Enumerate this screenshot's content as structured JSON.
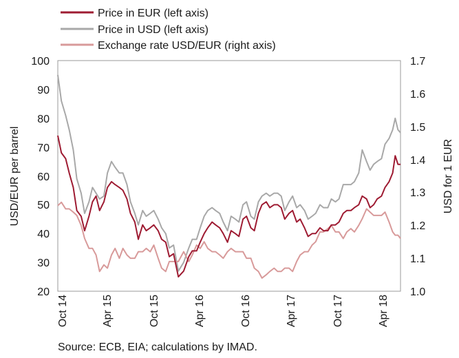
{
  "chart_data": {
    "type": "line",
    "title": "",
    "xlabel": "",
    "ylabel": "USD/EUR per barrel",
    "y2label": "USD for 1 EUR",
    "ylim": [
      20,
      100
    ],
    "y2lim": [
      1.0,
      1.7
    ],
    "yticks": [
      "100",
      "90",
      "80",
      "70",
      "60",
      "50",
      "40",
      "30",
      "20"
    ],
    "y2ticks": [
      "1.7",
      "1.6",
      "1.5",
      "1.4",
      "1.3",
      "1.2",
      "1.1",
      "1.0"
    ],
    "xticks": [
      "Oct 14",
      "Apr 15",
      "Oct 15",
      "Apr 16",
      "Oct 16",
      "Apr 17",
      "Oct 17",
      "Apr 18"
    ],
    "xrange": [
      "2014-10-01",
      "2018-06-15"
    ],
    "legend_position": "top-left",
    "source": "Source: ECB, EIA; calculations by IMAD.",
    "series": [
      {
        "name": "Price in EUR (left axis)",
        "axis": "left",
        "color": "#9e1b32",
        "points": [
          [
            "2014-10-01",
            74
          ],
          [
            "2014-10-15",
            68
          ],
          [
            "2014-11-01",
            66
          ],
          [
            "2014-11-15",
            61
          ],
          [
            "2014-12-01",
            56
          ],
          [
            "2014-12-15",
            48
          ],
          [
            "2015-01-01",
            46
          ],
          [
            "2015-01-15",
            41
          ],
          [
            "2015-02-01",
            46
          ],
          [
            "2015-02-15",
            51
          ],
          [
            "2015-03-01",
            53
          ],
          [
            "2015-03-15",
            48
          ],
          [
            "2015-04-01",
            51
          ],
          [
            "2015-04-15",
            56
          ],
          [
            "2015-05-01",
            58
          ],
          [
            "2015-05-15",
            57
          ],
          [
            "2015-06-01",
            56
          ],
          [
            "2015-06-15",
            55
          ],
          [
            "2015-07-01",
            52
          ],
          [
            "2015-07-15",
            47
          ],
          [
            "2015-08-01",
            44
          ],
          [
            "2015-08-15",
            38
          ],
          [
            "2015-09-01",
            43
          ],
          [
            "2015-09-15",
            41
          ],
          [
            "2015-10-01",
            42
          ],
          [
            "2015-10-15",
            43
          ],
          [
            "2015-11-01",
            41
          ],
          [
            "2015-11-15",
            38
          ],
          [
            "2015-12-01",
            37
          ],
          [
            "2015-12-15",
            32
          ],
          [
            "2016-01-01",
            33
          ],
          [
            "2016-01-20",
            25
          ],
          [
            "2016-02-10",
            27
          ],
          [
            "2016-03-01",
            32
          ],
          [
            "2016-03-15",
            34
          ],
          [
            "2016-04-01",
            34
          ],
          [
            "2016-04-15",
            37
          ],
          [
            "2016-05-01",
            40
          ],
          [
            "2016-05-15",
            42
          ],
          [
            "2016-06-01",
            44
          ],
          [
            "2016-06-15",
            43
          ],
          [
            "2016-07-01",
            42
          ],
          [
            "2016-07-15",
            40
          ],
          [
            "2016-08-01",
            37
          ],
          [
            "2016-08-15",
            41
          ],
          [
            "2016-09-01",
            40
          ],
          [
            "2016-09-15",
            39
          ],
          [
            "2016-10-01",
            45
          ],
          [
            "2016-10-15",
            46
          ],
          [
            "2016-11-01",
            42
          ],
          [
            "2016-11-15",
            41
          ],
          [
            "2016-12-01",
            47
          ],
          [
            "2016-12-15",
            50
          ],
          [
            "2017-01-01",
            51
          ],
          [
            "2017-01-15",
            49
          ],
          [
            "2017-02-01",
            50
          ],
          [
            "2017-02-15",
            50
          ],
          [
            "2017-03-01",
            49
          ],
          [
            "2017-03-15",
            45
          ],
          [
            "2017-04-01",
            47
          ],
          [
            "2017-04-15",
            48
          ],
          [
            "2017-05-01",
            44
          ],
          [
            "2017-05-15",
            45
          ],
          [
            "2017-06-01",
            42
          ],
          [
            "2017-06-15",
            39
          ],
          [
            "2017-07-01",
            40
          ],
          [
            "2017-07-15",
            40
          ],
          [
            "2017-08-01",
            42
          ],
          [
            "2017-08-15",
            41
          ],
          [
            "2017-09-01",
            41
          ],
          [
            "2017-09-15",
            43
          ],
          [
            "2017-10-01",
            43
          ],
          [
            "2017-10-15",
            44
          ],
          [
            "2017-11-01",
            47
          ],
          [
            "2017-11-15",
            48
          ],
          [
            "2017-12-01",
            48
          ],
          [
            "2017-12-15",
            49
          ],
          [
            "2018-01-01",
            50
          ],
          [
            "2018-01-15",
            53
          ],
          [
            "2018-02-01",
            52
          ],
          [
            "2018-02-15",
            49
          ],
          [
            "2018-03-01",
            50
          ],
          [
            "2018-03-15",
            52
          ],
          [
            "2018-04-01",
            53
          ],
          [
            "2018-04-15",
            56
          ],
          [
            "2018-05-01",
            58
          ],
          [
            "2018-05-15",
            61
          ],
          [
            "2018-05-25",
            67
          ],
          [
            "2018-06-05",
            64
          ],
          [
            "2018-06-15",
            64
          ]
        ]
      },
      {
        "name": "Price in USD (left axis)",
        "axis": "left",
        "color": "#a8a8a8",
        "points": [
          [
            "2014-10-01",
            95
          ],
          [
            "2014-10-15",
            86
          ],
          [
            "2014-11-01",
            81
          ],
          [
            "2014-11-15",
            76
          ],
          [
            "2014-12-01",
            69
          ],
          [
            "2014-12-15",
            59
          ],
          [
            "2015-01-01",
            54
          ],
          [
            "2015-01-15",
            47
          ],
          [
            "2015-02-01",
            51
          ],
          [
            "2015-02-15",
            56
          ],
          [
            "2015-03-01",
            54
          ],
          [
            "2015-03-15",
            52
          ],
          [
            "2015-04-01",
            53
          ],
          [
            "2015-04-15",
            61
          ],
          [
            "2015-05-01",
            65
          ],
          [
            "2015-05-15",
            63
          ],
          [
            "2015-06-01",
            61
          ],
          [
            "2015-06-15",
            61
          ],
          [
            "2015-07-01",
            57
          ],
          [
            "2015-07-15",
            51
          ],
          [
            "2015-08-01",
            47
          ],
          [
            "2015-08-15",
            43
          ],
          [
            "2015-09-01",
            48
          ],
          [
            "2015-09-15",
            46
          ],
          [
            "2015-10-01",
            47
          ],
          [
            "2015-10-15",
            48
          ],
          [
            "2015-11-01",
            45
          ],
          [
            "2015-11-15",
            42
          ],
          [
            "2015-12-01",
            40
          ],
          [
            "2015-12-15",
            35
          ],
          [
            "2016-01-01",
            36
          ],
          [
            "2016-01-20",
            27
          ],
          [
            "2016-02-10",
            30
          ],
          [
            "2016-03-01",
            35
          ],
          [
            "2016-03-15",
            38
          ],
          [
            "2016-04-01",
            38
          ],
          [
            "2016-04-15",
            42
          ],
          [
            "2016-05-01",
            46
          ],
          [
            "2016-05-15",
            48
          ],
          [
            "2016-06-01",
            49
          ],
          [
            "2016-06-15",
            48
          ],
          [
            "2016-07-01",
            47
          ],
          [
            "2016-07-15",
            44
          ],
          [
            "2016-08-01",
            41
          ],
          [
            "2016-08-15",
            46
          ],
          [
            "2016-09-01",
            45
          ],
          [
            "2016-09-15",
            44
          ],
          [
            "2016-10-01",
            50
          ],
          [
            "2016-10-15",
            51
          ],
          [
            "2016-11-01",
            46
          ],
          [
            "2016-11-15",
            45
          ],
          [
            "2016-12-01",
            51
          ],
          [
            "2016-12-15",
            53
          ],
          [
            "2017-01-01",
            54
          ],
          [
            "2017-01-15",
            53
          ],
          [
            "2017-02-01",
            54
          ],
          [
            "2017-02-15",
            54
          ],
          [
            "2017-03-01",
            53
          ],
          [
            "2017-03-15",
            48
          ],
          [
            "2017-04-01",
            51
          ],
          [
            "2017-04-15",
            53
          ],
          [
            "2017-05-01",
            49
          ],
          [
            "2017-05-15",
            50
          ],
          [
            "2017-06-01",
            48
          ],
          [
            "2017-06-15",
            45
          ],
          [
            "2017-07-01",
            46
          ],
          [
            "2017-07-15",
            47
          ],
          [
            "2017-08-01",
            50
          ],
          [
            "2017-08-15",
            49
          ],
          [
            "2017-09-01",
            49
          ],
          [
            "2017-09-15",
            52
          ],
          [
            "2017-10-01",
            51
          ],
          [
            "2017-10-15",
            52
          ],
          [
            "2017-11-01",
            57
          ],
          [
            "2017-11-15",
            57
          ],
          [
            "2017-12-01",
            57
          ],
          [
            "2017-12-15",
            58
          ],
          [
            "2018-01-01",
            61
          ],
          [
            "2018-01-15",
            69
          ],
          [
            "2018-02-01",
            65
          ],
          [
            "2018-02-15",
            62
          ],
          [
            "2018-03-01",
            64
          ],
          [
            "2018-03-15",
            65
          ],
          [
            "2018-04-01",
            66
          ],
          [
            "2018-04-15",
            71
          ],
          [
            "2018-05-01",
            73
          ],
          [
            "2018-05-15",
            76
          ],
          [
            "2018-05-25",
            80
          ],
          [
            "2018-06-05",
            76
          ],
          [
            "2018-06-15",
            75
          ]
        ]
      },
      {
        "name": "Exchange rate USD/EUR (right axis)",
        "axis": "right",
        "color": "#d89a9a",
        "points": [
          [
            "2014-10-01",
            1.26
          ],
          [
            "2014-10-15",
            1.27
          ],
          [
            "2014-11-01",
            1.25
          ],
          [
            "2014-11-15",
            1.25
          ],
          [
            "2014-12-01",
            1.24
          ],
          [
            "2014-12-15",
            1.23
          ],
          [
            "2015-01-01",
            1.2
          ],
          [
            "2015-01-15",
            1.16
          ],
          [
            "2015-02-01",
            1.13
          ],
          [
            "2015-02-15",
            1.13
          ],
          [
            "2015-03-01",
            1.11
          ],
          [
            "2015-03-15",
            1.06
          ],
          [
            "2015-04-01",
            1.08
          ],
          [
            "2015-04-15",
            1.07
          ],
          [
            "2015-05-01",
            1.11
          ],
          [
            "2015-05-15",
            1.13
          ],
          [
            "2015-06-01",
            1.1
          ],
          [
            "2015-06-15",
            1.13
          ],
          [
            "2015-07-01",
            1.11
          ],
          [
            "2015-07-15",
            1.1
          ],
          [
            "2015-08-01",
            1.1
          ],
          [
            "2015-08-15",
            1.12
          ],
          [
            "2015-09-01",
            1.12
          ],
          [
            "2015-09-15",
            1.13
          ],
          [
            "2015-10-01",
            1.12
          ],
          [
            "2015-10-15",
            1.14
          ],
          [
            "2015-11-01",
            1.1
          ],
          [
            "2015-11-15",
            1.07
          ],
          [
            "2015-12-01",
            1.06
          ],
          [
            "2015-12-15",
            1.09
          ],
          [
            "2016-01-01",
            1.09
          ],
          [
            "2016-01-20",
            1.09
          ],
          [
            "2016-02-10",
            1.12
          ],
          [
            "2016-03-01",
            1.09
          ],
          [
            "2016-03-15",
            1.11
          ],
          [
            "2016-04-01",
            1.14
          ],
          [
            "2016-04-15",
            1.13
          ],
          [
            "2016-05-01",
            1.15
          ],
          [
            "2016-05-15",
            1.13
          ],
          [
            "2016-06-01",
            1.12
          ],
          [
            "2016-06-15",
            1.12
          ],
          [
            "2016-07-01",
            1.11
          ],
          [
            "2016-07-15",
            1.1
          ],
          [
            "2016-08-01",
            1.12
          ],
          [
            "2016-08-15",
            1.13
          ],
          [
            "2016-09-01",
            1.12
          ],
          [
            "2016-09-15",
            1.12
          ],
          [
            "2016-10-01",
            1.12
          ],
          [
            "2016-10-15",
            1.1
          ],
          [
            "2016-11-01",
            1.1
          ],
          [
            "2016-11-15",
            1.07
          ],
          [
            "2016-12-01",
            1.06
          ],
          [
            "2016-12-15",
            1.04
          ],
          [
            "2017-01-01",
            1.05
          ],
          [
            "2017-01-15",
            1.06
          ],
          [
            "2017-02-01",
            1.07
          ],
          [
            "2017-02-15",
            1.06
          ],
          [
            "2017-03-01",
            1.06
          ],
          [
            "2017-03-15",
            1.07
          ],
          [
            "2017-04-01",
            1.07
          ],
          [
            "2017-04-15",
            1.06
          ],
          [
            "2017-05-01",
            1.09
          ],
          [
            "2017-05-15",
            1.11
          ],
          [
            "2017-06-01",
            1.12
          ],
          [
            "2017-06-15",
            1.12
          ],
          [
            "2017-07-01",
            1.14
          ],
          [
            "2017-07-15",
            1.15
          ],
          [
            "2017-08-01",
            1.18
          ],
          [
            "2017-08-15",
            1.18
          ],
          [
            "2017-09-01",
            1.19
          ],
          [
            "2017-09-15",
            1.2
          ],
          [
            "2017-10-01",
            1.18
          ],
          [
            "2017-10-15",
            1.18
          ],
          [
            "2017-11-01",
            1.16
          ],
          [
            "2017-11-15",
            1.18
          ],
          [
            "2017-12-01",
            1.19
          ],
          [
            "2017-12-15",
            1.18
          ],
          [
            "2018-01-01",
            1.2
          ],
          [
            "2018-01-15",
            1.22
          ],
          [
            "2018-02-01",
            1.25
          ],
          [
            "2018-02-15",
            1.24
          ],
          [
            "2018-03-01",
            1.23
          ],
          [
            "2018-03-15",
            1.23
          ],
          [
            "2018-04-01",
            1.23
          ],
          [
            "2018-04-15",
            1.24
          ],
          [
            "2018-05-01",
            1.21
          ],
          [
            "2018-05-15",
            1.18
          ],
          [
            "2018-05-25",
            1.17
          ],
          [
            "2018-06-05",
            1.17
          ],
          [
            "2018-06-15",
            1.16
          ]
        ]
      }
    ]
  }
}
